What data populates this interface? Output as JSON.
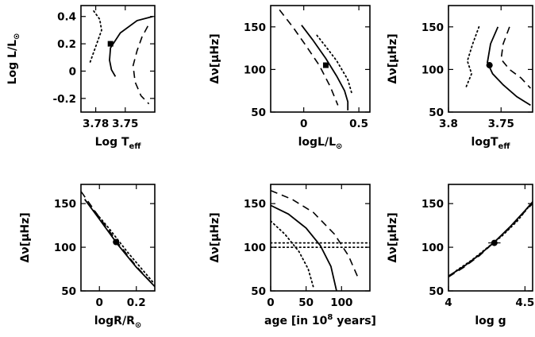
{
  "chart_data": [
    {
      "type": "line",
      "panel": "top-left",
      "xlabel": "Log T",
      "xlabel_sub": "eff",
      "ylabel": "Log L/L",
      "ylabel_sym": "⊙",
      "xlim": [
        3.795,
        3.72
      ],
      "ylim": [
        -0.3,
        0.48
      ],
      "xticks": [
        3.78,
        3.75
      ],
      "xticklabels": [
        "3.78",
        "3.75"
      ],
      "yticks": [
        -0.2,
        0,
        0.2,
        0.4
      ],
      "yticklabels": [
        "-0.2",
        "0",
        "0.2",
        "0.4"
      ],
      "series": [
        {
          "style": "dotted",
          "x": [
            3.782,
            3.776,
            3.774,
            3.778,
            3.782,
            3.786
          ],
          "y": [
            0.44,
            0.38,
            0.3,
            0.22,
            0.14,
            0.06
          ]
        },
        {
          "style": "solid",
          "x": [
            3.722,
            3.738,
            3.755,
            3.765,
            3.766,
            3.764,
            3.76
          ],
          "y": [
            0.4,
            0.37,
            0.28,
            0.17,
            0.08,
            0.01,
            -0.04
          ]
        },
        {
          "style": "dashed",
          "x": [
            3.727,
            3.733,
            3.738,
            3.742,
            3.74,
            3.734,
            3.726
          ],
          "y": [
            0.33,
            0.25,
            0.15,
            0.04,
            -0.08,
            -0.18,
            -0.24
          ]
        }
      ],
      "point": {
        "x": 3.765,
        "y": 0.2,
        "xerr": 0.002,
        "yerr": 0.02,
        "marker": "square"
      }
    },
    {
      "type": "line",
      "panel": "top-middle",
      "xlabel": "logL/L",
      "xlabel_sym": "⊙",
      "ylabel": "Δν[μHz]",
      "xlim": [
        -0.3,
        0.6
      ],
      "ylim": [
        50,
        175
      ],
      "xticks": [
        0,
        0.5
      ],
      "xticklabels": [
        "0",
        "0.5"
      ],
      "yticks": [
        50,
        100,
        150
      ],
      "yticklabels": [
        "50",
        "100",
        "150"
      ],
      "series": [
        {
          "style": "dashed",
          "x": [
            -0.22,
            -0.1,
            0.02,
            0.14,
            0.24,
            0.31
          ],
          "y": [
            170,
            150,
            128,
            105,
            80,
            58
          ]
        },
        {
          "style": "solid",
          "x": [
            -0.02,
            0.08,
            0.2,
            0.3,
            0.37,
            0.4,
            0.4
          ],
          "y": [
            152,
            135,
            113,
            92,
            75,
            62,
            52
          ]
        },
        {
          "style": "dotted",
          "x": [
            0.12,
            0.2,
            0.3,
            0.4,
            0.44
          ],
          "y": [
            140,
            127,
            110,
            88,
            70
          ]
        }
      ],
      "point": {
        "x": 0.2,
        "y": 105,
        "xerr": 0.01,
        "yerr": 1,
        "marker": "square"
      }
    },
    {
      "type": "line",
      "panel": "top-right",
      "xlabel": "logT",
      "xlabel_sub": "eff",
      "ylabel": "Δν[μHz]",
      "xlim": [
        3.8,
        3.72
      ],
      "ylim": [
        50,
        175
      ],
      "xticks": [
        3.8,
        3.75
      ],
      "xticklabels": [
        "3.8",
        "3.75"
      ],
      "yticks": [
        50,
        100,
        150
      ],
      "yticklabels": [
        "50",
        "100",
        "150"
      ],
      "series": [
        {
          "style": "dotted",
          "x": [
            3.771,
            3.777,
            3.782,
            3.778,
            3.783
          ],
          "y": [
            150,
            130,
            110,
            95,
            80
          ]
        },
        {
          "style": "solid",
          "x": [
            3.753,
            3.76,
            3.763,
            3.758,
            3.748,
            3.735,
            3.722
          ],
          "y": [
            150,
            130,
            108,
            95,
            82,
            68,
            58
          ]
        },
        {
          "style": "dashed",
          "x": [
            3.742,
            3.748,
            3.75,
            3.742,
            3.731,
            3.722
          ],
          "y": [
            150,
            130,
            112,
            100,
            90,
            78
          ]
        }
      ],
      "point": {
        "x": 3.761,
        "y": 105,
        "xerr": 0.003,
        "yerr": 1,
        "marker": "circle"
      }
    },
    {
      "type": "line",
      "panel": "bottom-left",
      "xlabel": "logR/R",
      "xlabel_sym": "⊙",
      "ylabel": "Δν[μHz]",
      "xlim": [
        -0.1,
        0.3
      ],
      "ylim": [
        50,
        172
      ],
      "xticks": [
        0,
        0.2
      ],
      "xticklabels": [
        "0",
        "0.2"
      ],
      "yticks": [
        50,
        100,
        150
      ],
      "yticklabels": [
        "50",
        "100",
        "150"
      ],
      "series": [
        {
          "style": "dashed",
          "x": [
            -0.1,
            0.0,
            0.1,
            0.2,
            0.3
          ],
          "y": [
            164,
            134,
            105,
            78,
            55
          ]
        },
        {
          "style": "solid",
          "x": [
            -0.08,
            0.0,
            0.1,
            0.2,
            0.3
          ],
          "y": [
            155,
            132,
            103,
            77,
            55
          ]
        },
        {
          "style": "dotted",
          "x": [
            -0.03,
            0.05,
            0.15,
            0.25,
            0.29
          ],
          "y": [
            142,
            122,
            95,
            70,
            60
          ]
        }
      ],
      "point": {
        "x": 0.09,
        "y": 106,
        "xerr": 0.01,
        "yerr": 2,
        "marker": "circle"
      }
    },
    {
      "type": "line",
      "panel": "bottom-middle",
      "xlabel": "age [in 10",
      "xlabel_sup": "8",
      "xlabel_end": " years]",
      "ylabel": "Δν[μHz]",
      "xlim": [
        0,
        140
      ],
      "ylim": [
        50,
        172
      ],
      "xticks": [
        0,
        50,
        100
      ],
      "xticklabels": [
        "0",
        "50",
        "100"
      ],
      "yticks": [
        50,
        100,
        150
      ],
      "yticklabels": [
        "50",
        "100",
        "150"
      ],
      "series": [
        {
          "style": "dashed",
          "x": [
            0,
            30,
            60,
            90,
            110,
            125
          ],
          "y": [
            165,
            155,
            140,
            115,
            90,
            62
          ]
        },
        {
          "style": "solid",
          "x": [
            0,
            25,
            50,
            70,
            85,
            93
          ],
          "y": [
            148,
            138,
            122,
            102,
            78,
            50
          ]
        },
        {
          "style": "dotted",
          "x": [
            0,
            20,
            40,
            53,
            60
          ],
          "y": [
            130,
            115,
            95,
            75,
            55
          ]
        },
        {
          "style": "dotted",
          "x": [
            0,
            140
          ],
          "y": [
            105,
            105
          ]
        },
        {
          "style": "dotted",
          "x": [
            0,
            140
          ],
          "y": [
            100,
            100
          ]
        }
      ]
    },
    {
      "type": "line",
      "panel": "bottom-right",
      "xlabel": "log g",
      "ylabel": "Δν[μHz]",
      "xlim": [
        4.0,
        4.55
      ],
      "ylim": [
        50,
        172
      ],
      "xticks": [
        4.0,
        4.5
      ],
      "xticklabels": [
        "4",
        "4.5"
      ],
      "yticks": [
        50,
        100,
        150
      ],
      "yticklabels": [
        "50",
        "100",
        "150"
      ],
      "series": [
        {
          "style": "dashed",
          "x": [
            4.0,
            4.1,
            4.2,
            4.3,
            4.4,
            4.5,
            4.55
          ],
          "y": [
            66,
            77,
            90,
            106,
            122,
            141,
            150
          ]
        },
        {
          "style": "solid",
          "x": [
            4.0,
            4.1,
            4.2,
            4.3,
            4.4,
            4.5,
            4.55
          ],
          "y": [
            67,
            78,
            91,
            106,
            123,
            142,
            152
          ]
        },
        {
          "style": "dotted",
          "x": [
            4.05,
            4.15,
            4.25,
            4.35,
            4.45,
            4.55
          ],
          "y": [
            73,
            85,
            99,
            113,
            130,
            152
          ]
        }
      ],
      "point": {
        "x": 4.3,
        "y": 105,
        "xerr": 0.04,
        "yerr": 1.5,
        "marker": "circle"
      }
    }
  ]
}
